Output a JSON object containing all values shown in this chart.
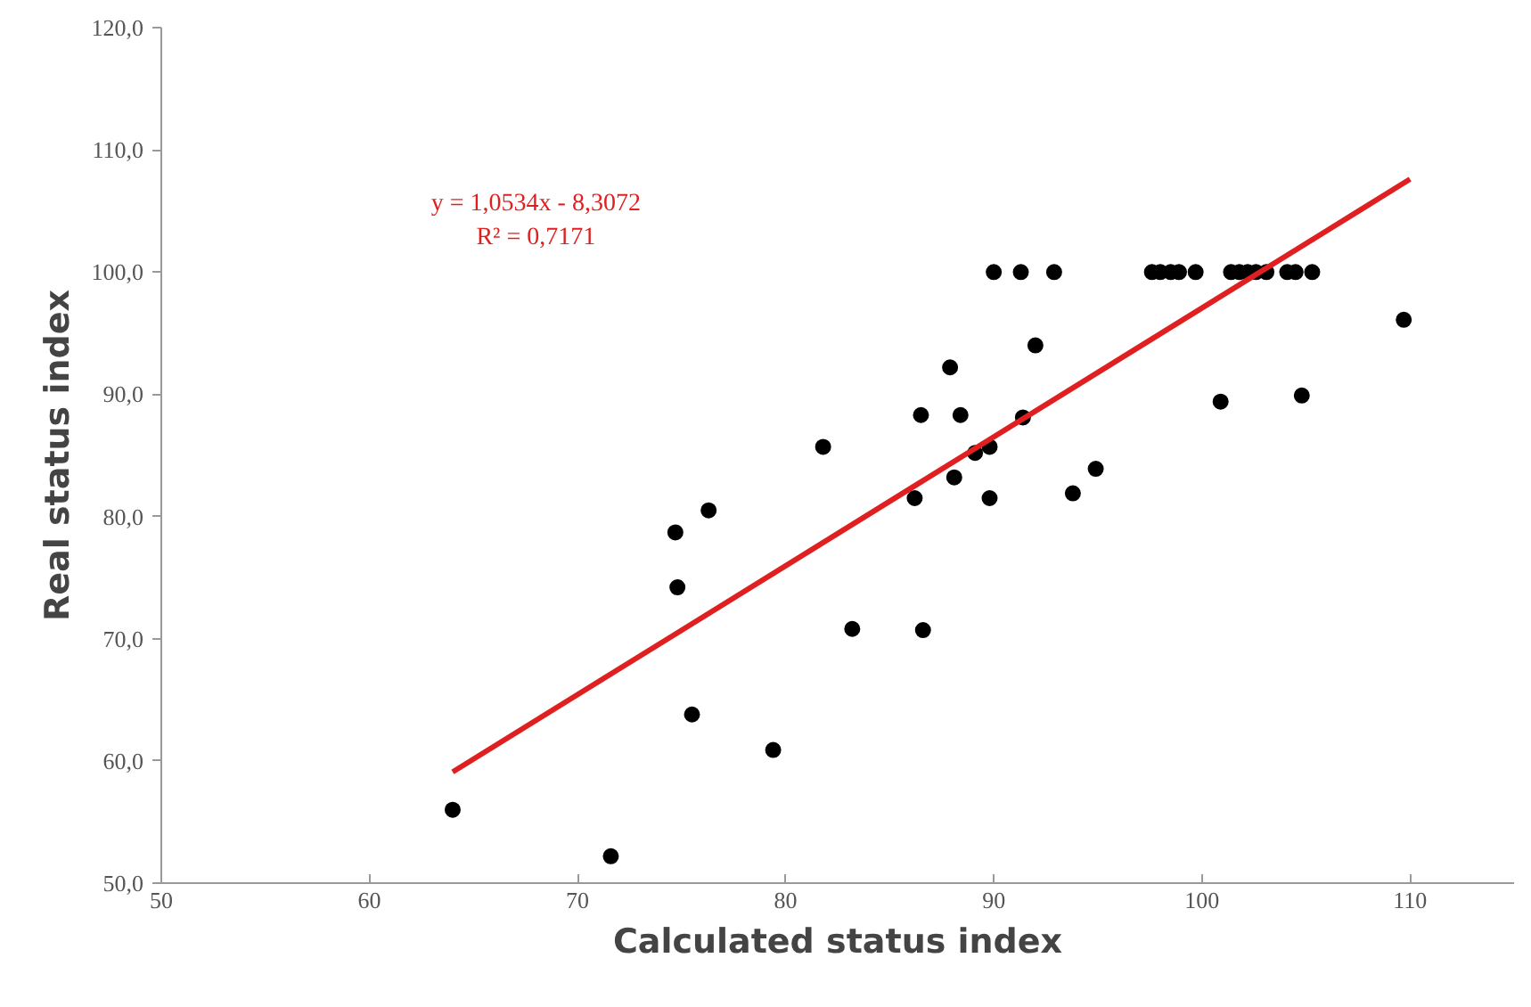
{
  "chart_data": {
    "type": "scatter",
    "xlabel": "Calculated status index",
    "ylabel": "Real status index",
    "xlim": [
      50,
      115
    ],
    "xticks": [
      50,
      60,
      70,
      80,
      90,
      100,
      110
    ],
    "ylim": [
      50,
      120
    ],
    "yticks": [
      {
        "value": 50,
        "label": "50,0"
      },
      {
        "value": 60,
        "label": "60,0"
      },
      {
        "value": 70,
        "label": "70,0"
      },
      {
        "value": 80,
        "label": "80,0"
      },
      {
        "value": 90,
        "label": "90,0"
      },
      {
        "value": 100,
        "label": "100,0"
      },
      {
        "value": 110,
        "label": "110,0"
      },
      {
        "value": 120,
        "label": "120,0"
      }
    ],
    "grid": false,
    "annotations": [
      "y = 1,0534x - 8,3072",
      "R² = 0,7171"
    ],
    "series": [
      {
        "color": "#000000",
        "marker": "circle",
        "x": [
          64.0,
          71.6,
          74.7,
          74.8,
          76.3,
          75.5,
          79.4,
          81.8,
          83.2,
          86.6,
          86.2,
          86.5,
          87.9,
          88.4,
          88.1,
          89.1,
          89.8,
          89.8,
          90.0,
          91.3,
          91.4,
          92.0,
          92.9,
          93.8,
          94.9,
          97.6,
          98.0,
          98.5,
          98.9,
          99.7,
          101.4,
          101.8,
          102.2,
          102.6,
          103.1,
          104.1,
          104.5,
          105.3,
          100.9,
          104.8,
          109.7
        ],
        "values": [
          56.0,
          52.2,
          78.7,
          74.2,
          80.5,
          63.8,
          60.9,
          85.7,
          70.8,
          70.7,
          81.5,
          88.3,
          92.2,
          88.3,
          83.2,
          85.2,
          85.7,
          81.5,
          100,
          100,
          88.1,
          94.0,
          100,
          81.9,
          83.9,
          100,
          100,
          100,
          100,
          100,
          100,
          100,
          100,
          100,
          100,
          100,
          100,
          100,
          89.4,
          89.9,
          96.1
        ]
      },
      {
        "type": "line",
        "color": "#e02020",
        "x": [
          64,
          110
        ],
        "values": [
          59.1,
          107.6
        ],
        "marker": "none"
      }
    ]
  }
}
